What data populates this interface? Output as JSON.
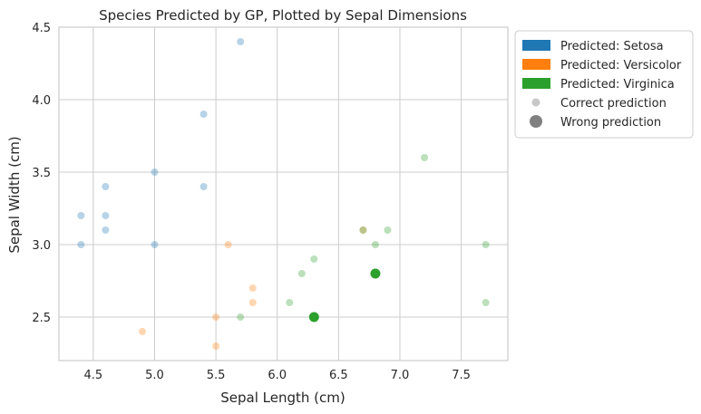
{
  "chart_data": {
    "type": "scatter",
    "title": "Species Predicted by GP, Plotted by Sepal Dimensions",
    "xlabel": "Sepal Length (cm)",
    "ylabel": "Sepal Width (cm)",
    "xlim": [
      4.22,
      7.88
    ],
    "ylim": [
      2.2,
      4.5
    ],
    "xticks": [
      4.5,
      5.0,
      5.5,
      6.0,
      6.5,
      7.0,
      7.5
    ],
    "xtick_labels": [
      "4.5",
      "5.0",
      "5.5",
      "6.0",
      "6.5",
      "7.0",
      "7.5"
    ],
    "yticks": [
      2.5,
      3.0,
      3.5,
      4.0,
      4.5
    ],
    "ytick_labels": [
      "2.5",
      "3.0",
      "3.5",
      "4.0",
      "4.5"
    ],
    "grid": true,
    "legend_position": "outside-top-right",
    "legend": [
      {
        "label": "Predicted: Setosa",
        "kind": "patch",
        "color": "#1f77b4"
      },
      {
        "label": "Predicted: Versicolor",
        "kind": "patch",
        "color": "#ff7f0e"
      },
      {
        "label": "Predicted: Virginica",
        "kind": "patch",
        "color": "#2ca02c"
      },
      {
        "label": "Correct prediction",
        "kind": "marker-small",
        "color": "#c8c8c8"
      },
      {
        "label": "Wrong prediction",
        "kind": "marker-large",
        "color": "#808080"
      }
    ],
    "colors": {
      "setosa": "#1f77b4",
      "versicolor": "#ff7f0e",
      "virginica": "#2ca02c"
    },
    "series": [
      {
        "class": "setosa",
        "points": [
          {
            "x": 4.4,
            "y": 3.2,
            "correct": true
          },
          {
            "x": 4.4,
            "y": 3.0,
            "correct": true
          },
          {
            "x": 4.6,
            "y": 3.4,
            "correct": true
          },
          {
            "x": 4.6,
            "y": 3.2,
            "correct": true
          },
          {
            "x": 4.6,
            "y": 3.1,
            "correct": true
          },
          {
            "x": 5.0,
            "y": 3.5,
            "correct": true
          },
          {
            "x": 5.0,
            "y": 3.0,
            "correct": true
          },
          {
            "x": 5.4,
            "y": 3.9,
            "correct": true
          },
          {
            "x": 5.4,
            "y": 3.4,
            "correct": true
          },
          {
            "x": 5.7,
            "y": 4.4,
            "correct": true
          }
        ]
      },
      {
        "class": "versicolor",
        "points": [
          {
            "x": 4.9,
            "y": 2.4,
            "correct": true
          },
          {
            "x": 5.5,
            "y": 2.5,
            "correct": true
          },
          {
            "x": 5.5,
            "y": 2.3,
            "correct": true
          },
          {
            "x": 5.6,
            "y": 3.0,
            "correct": true
          },
          {
            "x": 5.8,
            "y": 2.7,
            "correct": true
          },
          {
            "x": 5.8,
            "y": 2.6,
            "correct": true
          },
          {
            "x": 6.7,
            "y": 3.1,
            "correct": true
          }
        ]
      },
      {
        "class": "virginica",
        "points": [
          {
            "x": 5.7,
            "y": 2.5,
            "correct": true
          },
          {
            "x": 6.1,
            "y": 2.6,
            "correct": true
          },
          {
            "x": 6.2,
            "y": 2.8,
            "correct": true
          },
          {
            "x": 6.3,
            "y": 2.9,
            "correct": true
          },
          {
            "x": 6.7,
            "y": 3.1,
            "correct": true
          },
          {
            "x": 6.8,
            "y": 3.0,
            "correct": true
          },
          {
            "x": 6.9,
            "y": 3.1,
            "correct": true
          },
          {
            "x": 7.2,
            "y": 3.6,
            "correct": true
          },
          {
            "x": 7.7,
            "y": 3.0,
            "correct": true
          },
          {
            "x": 7.7,
            "y": 2.6,
            "correct": true
          },
          {
            "x": 6.3,
            "y": 2.5,
            "correct": false
          },
          {
            "x": 6.8,
            "y": 2.8,
            "correct": false
          }
        ]
      }
    ]
  }
}
